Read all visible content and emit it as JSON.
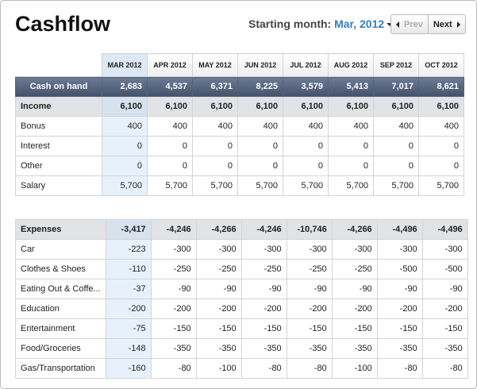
{
  "header": {
    "title": "Cashflow",
    "month_label": "Starting month:",
    "month_value": "Mar, 2012",
    "prev": "Prev",
    "next": "Next"
  },
  "table": {
    "months": [
      "MAR 2012",
      "APR 2012",
      "MAY 2012",
      "JUN 2012",
      "JUL 2012",
      "AUG 2012",
      "SEP 2012",
      "OCT 2012"
    ],
    "cash": {
      "label": "Cash on hand",
      "values": [
        "2,683",
        "4,537",
        "6,371",
        "8,225",
        "3,579",
        "5,413",
        "7,017",
        "8,621"
      ]
    },
    "sections": [
      {
        "label": "Income",
        "totals": [
          "6,100",
          "6,100",
          "6,100",
          "6,100",
          "6,100",
          "6,100",
          "6,100",
          "6,100"
        ],
        "rows": [
          {
            "label": "Bonus",
            "values": [
              "400",
              "400",
              "400",
              "400",
              "400",
              "400",
              "400",
              "400"
            ]
          },
          {
            "label": "Interest",
            "values": [
              "0",
              "0",
              "0",
              "0",
              "0",
              "0",
              "0",
              "0"
            ]
          },
          {
            "label": "Other",
            "values": [
              "0",
              "0",
              "0",
              "0",
              "0",
              "0",
              "0",
              "0"
            ]
          },
          {
            "label": "Salary",
            "values": [
              "5,700",
              "5,700",
              "5,700",
              "5,700",
              "5,700",
              "5,700",
              "5,700",
              "5,700"
            ]
          }
        ]
      },
      {
        "label": "Expenses",
        "totals": [
          "-3,417",
          "-4,246",
          "-4,266",
          "-4,246",
          "-10,746",
          "-4,266",
          "-4,496",
          "-4,496"
        ],
        "rows": [
          {
            "label": "Car",
            "values": [
              "-223",
              "-300",
              "-300",
              "-300",
              "-300",
              "-300",
              "-300",
              "-300"
            ]
          },
          {
            "label": "Clothes & Shoes",
            "values": [
              "-110",
              "-250",
              "-250",
              "-250",
              "-250",
              "-250",
              "-500",
              "-500"
            ]
          },
          {
            "label": "Eating Out & Coffe...",
            "values": [
              "-37",
              "-90",
              "-90",
              "-90",
              "-90",
              "-90",
              "-90",
              "-90"
            ]
          },
          {
            "label": "Education",
            "values": [
              "-200",
              "-200",
              "-200",
              "-200",
              "-200",
              "-200",
              "-200",
              "-200"
            ]
          },
          {
            "label": "Entertainment",
            "values": [
              "-75",
              "-150",
              "-150",
              "-150",
              "-150",
              "-150",
              "-150",
              "-150"
            ]
          },
          {
            "label": "Food/Groceries",
            "values": [
              "-148",
              "-350",
              "-350",
              "-350",
              "-350",
              "-350",
              "-350",
              "-350"
            ]
          },
          {
            "label": "Gas/Transportation",
            "values": [
              "-160",
              "-80",
              "-100",
              "-80",
              "-80",
              "-100",
              "-80",
              "-80"
            ]
          }
        ]
      }
    ]
  }
}
